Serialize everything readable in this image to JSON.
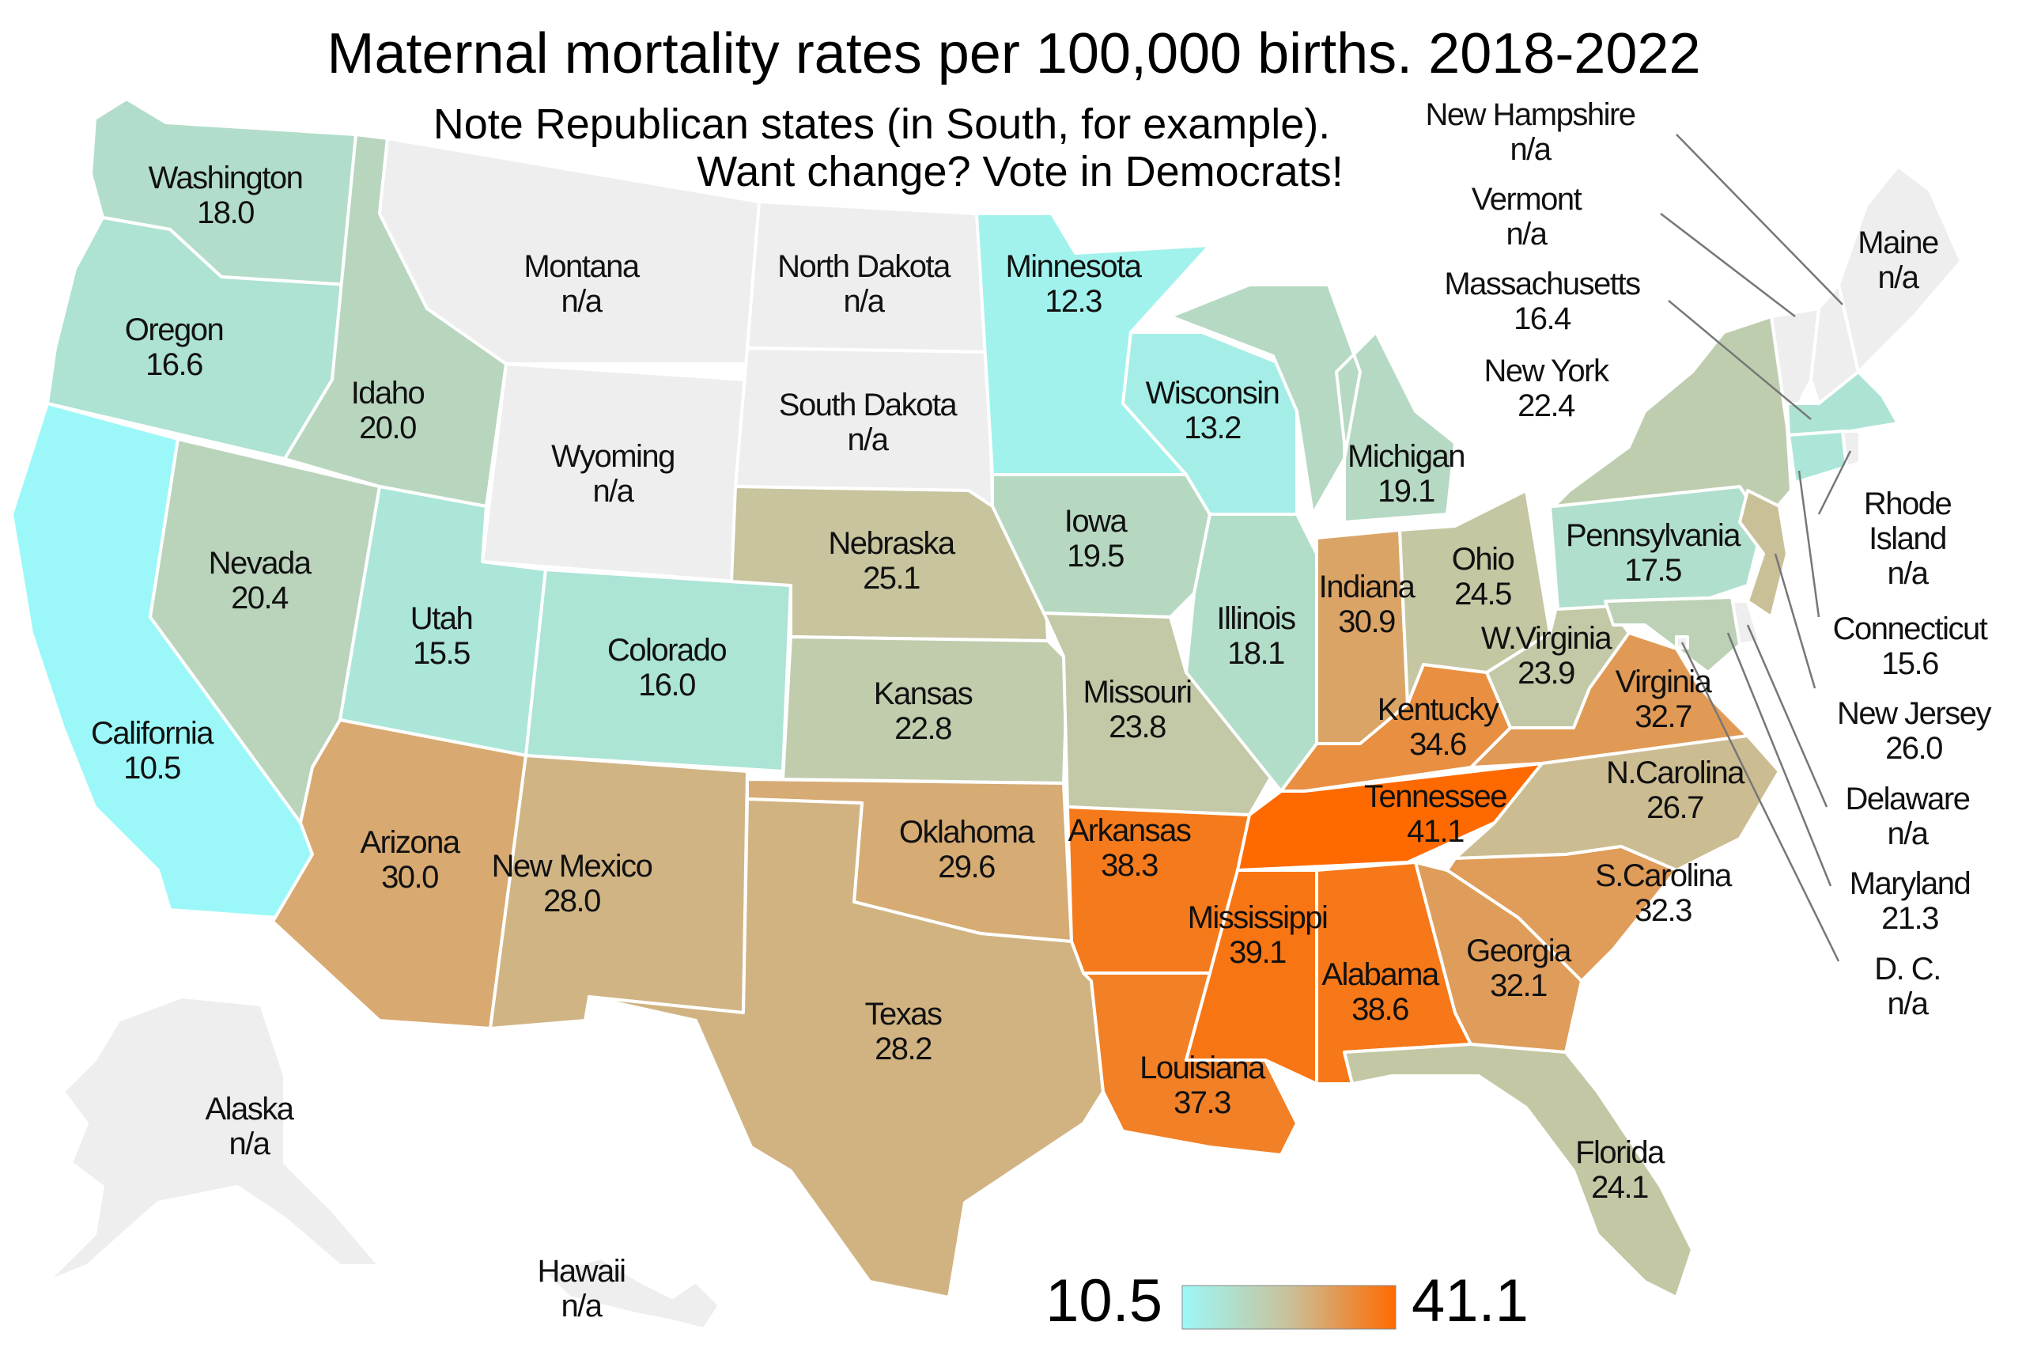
{
  "title": "Maternal mortality rates per 100,000 births. 2018-2022",
  "subtitle_line1": "Note Republican states (in South, for example).",
  "subtitle_line2": "Want change? Vote in Democrats!",
  "colors": {
    "min": "#9cf8f8",
    "mid": "#c9c19a",
    "max": "#ff6a00",
    "na": "#eeeeee",
    "border": "#ffffff"
  },
  "legend": {
    "min_label": "10.5",
    "max_label": "41.1",
    "min": 10.5,
    "max": 41.1
  },
  "chart_data": {
    "type": "choropleth",
    "title": "Maternal mortality rates per 100,000 births. 2018-2022",
    "unit": "deaths per 100,000 births",
    "range": [
      10.5,
      41.1
    ],
    "states": [
      {
        "id": "WA",
        "name": "Washington",
        "value": 18.0,
        "label": "18.0"
      },
      {
        "id": "OR",
        "name": "Oregon",
        "value": 16.6,
        "label": "16.6"
      },
      {
        "id": "CA",
        "name": "California",
        "value": 10.5,
        "label": "10.5"
      },
      {
        "id": "ID",
        "name": "Idaho",
        "value": 20.0,
        "label": "20.0"
      },
      {
        "id": "NV",
        "name": "Nevada",
        "value": 20.4,
        "label": "20.4"
      },
      {
        "id": "MT",
        "name": "Montana",
        "value": null,
        "label": "n/a"
      },
      {
        "id": "WY",
        "name": "Wyoming",
        "value": null,
        "label": "n/a"
      },
      {
        "id": "UT",
        "name": "Utah",
        "value": 15.5,
        "label": "15.5"
      },
      {
        "id": "CO",
        "name": "Colorado",
        "value": 16.0,
        "label": "16.0"
      },
      {
        "id": "AZ",
        "name": "Arizona",
        "value": 30.0,
        "label": "30.0"
      },
      {
        "id": "NM",
        "name": "New Mexico",
        "value": 28.0,
        "label": "28.0"
      },
      {
        "id": "ND",
        "name": "North Dakota",
        "value": null,
        "label": "n/a"
      },
      {
        "id": "SD",
        "name": "South Dakota",
        "value": null,
        "label": "n/a"
      },
      {
        "id": "NE",
        "name": "Nebraska",
        "value": 25.1,
        "label": "25.1"
      },
      {
        "id": "KS",
        "name": "Kansas",
        "value": 22.8,
        "label": "22.8"
      },
      {
        "id": "OK",
        "name": "Oklahoma",
        "value": 29.6,
        "label": "29.6"
      },
      {
        "id": "TX",
        "name": "Texas",
        "value": 28.2,
        "label": "28.2"
      },
      {
        "id": "MN",
        "name": "Minnesota",
        "value": 12.3,
        "label": "12.3"
      },
      {
        "id": "IA",
        "name": "Iowa",
        "value": 19.5,
        "label": "19.5"
      },
      {
        "id": "MO",
        "name": "Missouri",
        "value": 23.8,
        "label": "23.8"
      },
      {
        "id": "AR",
        "name": "Arkansas",
        "value": 38.3,
        "label": "38.3"
      },
      {
        "id": "LA",
        "name": "Louisiana",
        "value": 37.3,
        "label": "37.3"
      },
      {
        "id": "WI",
        "name": "Wisconsin",
        "value": 13.2,
        "label": "13.2"
      },
      {
        "id": "IL",
        "name": "Illinois",
        "value": 18.1,
        "label": "18.1"
      },
      {
        "id": "MS",
        "name": "Mississippi",
        "value": 39.1,
        "label": "39.1"
      },
      {
        "id": "MI",
        "name": "Michigan",
        "value": 19.1,
        "label": "19.1"
      },
      {
        "id": "IN",
        "name": "Indiana",
        "value": 30.9,
        "label": "30.9"
      },
      {
        "id": "KY",
        "name": "Kentucky",
        "value": 34.6,
        "label": "34.6"
      },
      {
        "id": "TN",
        "name": "Tennessee",
        "value": 41.1,
        "label": "41.1"
      },
      {
        "id": "AL",
        "name": "Alabama",
        "value": 38.6,
        "label": "38.6"
      },
      {
        "id": "OH",
        "name": "Ohio",
        "value": 24.5,
        "label": "24.5"
      },
      {
        "id": "WV",
        "name": "W.Virginia",
        "value": 23.9,
        "label": "23.9"
      },
      {
        "id": "VA",
        "name": "Virginia",
        "value": 32.7,
        "label": "32.7"
      },
      {
        "id": "NC",
        "name": "N.Carolina",
        "value": 26.7,
        "label": "26.7"
      },
      {
        "id": "SC",
        "name": "S.Carolina",
        "value": 32.3,
        "label": "32.3"
      },
      {
        "id": "GA",
        "name": "Georgia",
        "value": 32.1,
        "label": "32.1"
      },
      {
        "id": "FL",
        "name": "Florida",
        "value": 24.1,
        "label": "24.1"
      },
      {
        "id": "PA",
        "name": "Pennsylvania",
        "value": 17.5,
        "label": "17.5"
      },
      {
        "id": "NY",
        "name": "New York",
        "value": 22.4,
        "label": "22.4"
      },
      {
        "id": "VT",
        "name": "Vermont",
        "value": null,
        "label": "n/a"
      },
      {
        "id": "NH",
        "name": "New Hampshire",
        "value": null,
        "label": "n/a"
      },
      {
        "id": "ME",
        "name": "Maine",
        "value": null,
        "label": "n/a"
      },
      {
        "id": "MA",
        "name": "Massachusetts",
        "value": 16.4,
        "label": "16.4"
      },
      {
        "id": "RI",
        "name": "Rhode Island",
        "value": null,
        "label": "n/a"
      },
      {
        "id": "CT",
        "name": "Connecticut",
        "value": 15.6,
        "label": "15.6"
      },
      {
        "id": "NJ",
        "name": "New Jersey",
        "value": 26.0,
        "label": "26.0"
      },
      {
        "id": "DE",
        "name": "Delaware",
        "value": null,
        "label": "n/a"
      },
      {
        "id": "MD",
        "name": "Maryland",
        "value": 21.3,
        "label": "21.3"
      },
      {
        "id": "DC",
        "name": "D. C.",
        "value": null,
        "label": "n/a"
      },
      {
        "id": "AK",
        "name": "Alaska",
        "value": null,
        "label": "n/a"
      },
      {
        "id": "HI",
        "name": "Hawaii",
        "value": null,
        "label": "n/a"
      }
    ]
  }
}
